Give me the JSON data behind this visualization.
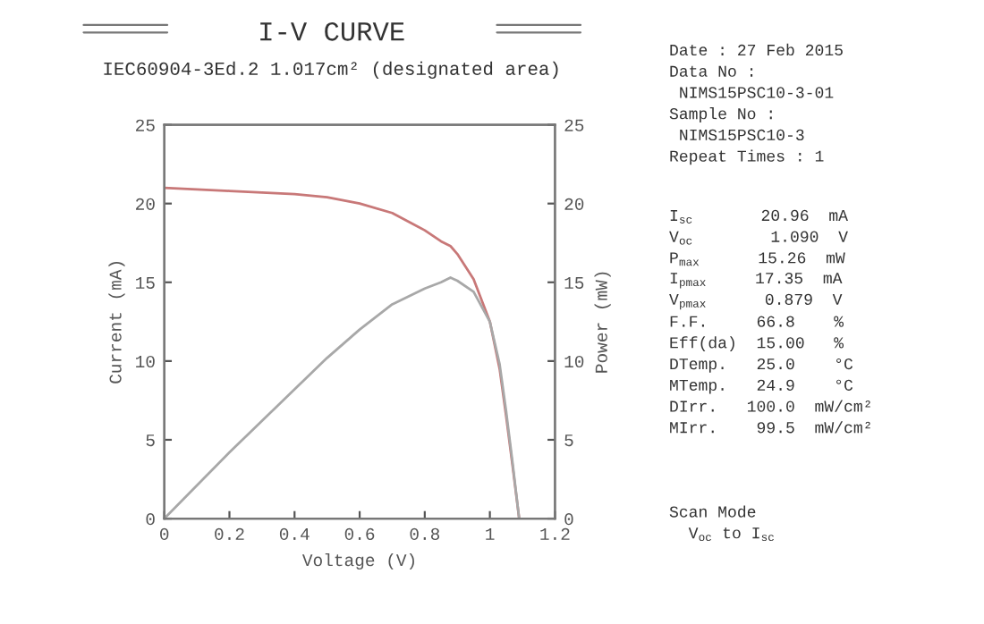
{
  "chart_data": [
    {
      "type": "line",
      "title": "I-V CURVE",
      "subtitle": "IEC60904-3Ed.2 1.017cm² (designated area)",
      "xlabel": "Voltage (V)",
      "ylabel": "Current (mA)",
      "y2label": "Power (mW)",
      "xlim": [
        0,
        1.2
      ],
      "xticks": [
        0,
        0.2,
        0.4,
        0.6,
        0.8,
        1,
        1.2
      ],
      "ylim": [
        0,
        25
      ],
      "yticks": [
        0,
        5,
        10,
        15,
        20,
        25
      ],
      "y2lim": [
        0,
        25
      ],
      "y2ticks": [
        0,
        5,
        10,
        15,
        20,
        25
      ],
      "grid": false,
      "legend": false,
      "marker": "none",
      "line_style": "solid",
      "series": [
        {
          "color": "#c87878",
          "x": [
            0,
            0.1,
            0.2,
            0.3,
            0.4,
            0.5,
            0.6,
            0.7,
            0.8,
            0.85,
            0.879,
            0.9,
            0.95,
            1.0,
            1.03,
            1.05,
            1.07,
            1.09
          ],
          "values": [
            21.0,
            20.9,
            20.8,
            20.7,
            20.6,
            20.4,
            20.0,
            19.4,
            18.3,
            17.6,
            17.3,
            16.8,
            15.2,
            12.5,
            9.5,
            6.5,
            3.3,
            0
          ]
        },
        {
          "color": "#a8a8a8",
          "axis": "y2",
          "x": [
            0,
            0.1,
            0.2,
            0.3,
            0.4,
            0.5,
            0.6,
            0.7,
            0.8,
            0.85,
            0.879,
            0.9,
            0.95,
            1.0,
            1.03,
            1.05,
            1.07,
            1.09
          ],
          "values": [
            0,
            2.1,
            4.2,
            6.2,
            8.2,
            10.2,
            12.0,
            13.6,
            14.6,
            15.0,
            15.3,
            15.1,
            14.4,
            12.5,
            9.8,
            6.8,
            3.5,
            0
          ]
        }
      ]
    },
    {
      "type": "other",
      "annotations": [
        "Date : 27 Feb 2015",
        "Data No :",
        " NIMS15PSC10-3-01",
        "Sample No :",
        " NIMS15PSC10-3",
        "Repeat Times : 1"
      ]
    },
    {
      "type": "other",
      "annotations": [
        "I$_{sc}$       20.96  mA",
        "V$_{oc}$        1.090  V",
        "P$_{max}$      15.26  mW",
        "I$_{pmax}$     17.35  mA",
        "V$_{pmax}$      0.879  V",
        "F.F.     66.8    %",
        "Eff(da)  15.00   %",
        "DTemp.   25.0    °C",
        "MTemp.   24.9    °C",
        "DIrr.   100.0  mW/cm²",
        "MIrr.    99.5  mW/cm²"
      ]
    },
    {
      "type": "other",
      "annotations": [
        "Scan Mode",
        "  V$_{oc}$ to I$_{sc}$"
      ]
    }
  ]
}
